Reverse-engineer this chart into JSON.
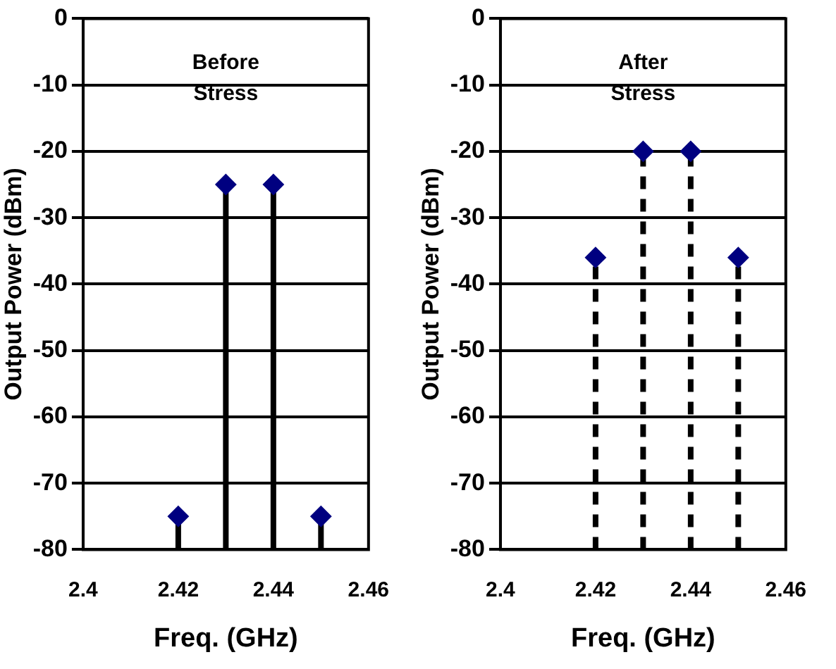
{
  "chart_data": [
    {
      "type": "lollipop",
      "annotations": [
        "Before\nStress"
      ],
      "xlabel": "Freq. (GHz)",
      "ylabel": "Output Power (dBm)",
      "x": [
        2.42,
        2.43,
        2.44,
        2.45
      ],
      "values": [
        -75,
        -25,
        -25,
        -75
      ],
      "errors": [
        [
          -80,
          -75
        ],
        [
          -80,
          -25
        ],
        [
          -80,
          -25
        ],
        [
          -80,
          -75
        ]
      ],
      "color": "#000080",
      "xlim": [
        2.4,
        2.46
      ],
      "xticks": [
        2.4,
        2.42,
        2.44,
        2.46
      ],
      "ylim": [
        -80,
        0
      ],
      "yticks": [
        -80,
        -70,
        -60,
        -50,
        -40,
        -30,
        -20,
        -10,
        0
      ],
      "grid": "y",
      "marker": "diamond",
      "line_style": "solid"
    },
    {
      "type": "lollipop",
      "annotations": [
        "After\nStress"
      ],
      "xlabel": "Freq. (GHz)",
      "ylabel": "Output Power (dBm)",
      "x": [
        2.42,
        2.43,
        2.44,
        2.45
      ],
      "values": [
        -36,
        -20,
        -20,
        -36
      ],
      "errors": [
        [
          -80,
          -36
        ],
        [
          -80,
          -20
        ],
        [
          -80,
          -20
        ],
        [
          -80,
          -36
        ]
      ],
      "color": "#000080",
      "xlim": [
        2.4,
        2.46
      ],
      "xticks": [
        2.4,
        2.42,
        2.44,
        2.46
      ],
      "ylim": [
        -80,
        0
      ],
      "yticks": [
        -80,
        -70,
        -60,
        -50,
        -40,
        -30,
        -20,
        -10,
        0
      ],
      "grid": "y",
      "marker": "diamond",
      "line_style": "dashed"
    }
  ]
}
